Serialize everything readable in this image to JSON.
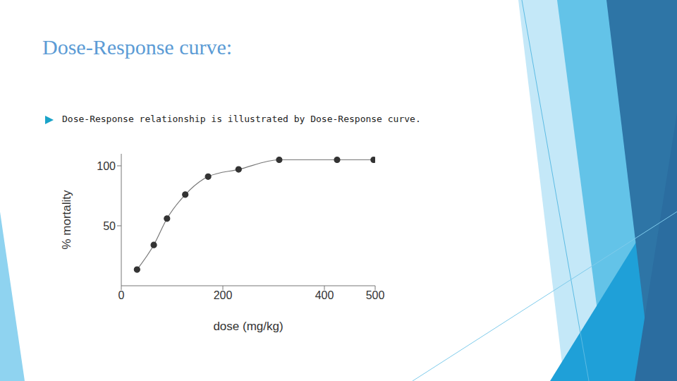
{
  "title": "Dose-Response curve:",
  "bullets": [
    "Dose-Response relationship is illustrated by Dose-Response curve."
  ],
  "chart_data": {
    "type": "line",
    "x": [
      31,
      64,
      90,
      126,
      171,
      231,
      311,
      425,
      497
    ],
    "values": [
      13.5,
      34,
      56,
      76,
      91,
      97,
      105,
      105,
      105
    ],
    "x_label": "dose (mg/kg)",
    "y_label": "% mortality",
    "xlim": [
      0,
      500
    ],
    "xticks": [
      0,
      200,
      400,
      500
    ],
    "ylim": [
      0,
      110
    ],
    "yticks": [
      50,
      100
    ],
    "color": "#777777",
    "marker": "circle",
    "grid": false
  }
}
